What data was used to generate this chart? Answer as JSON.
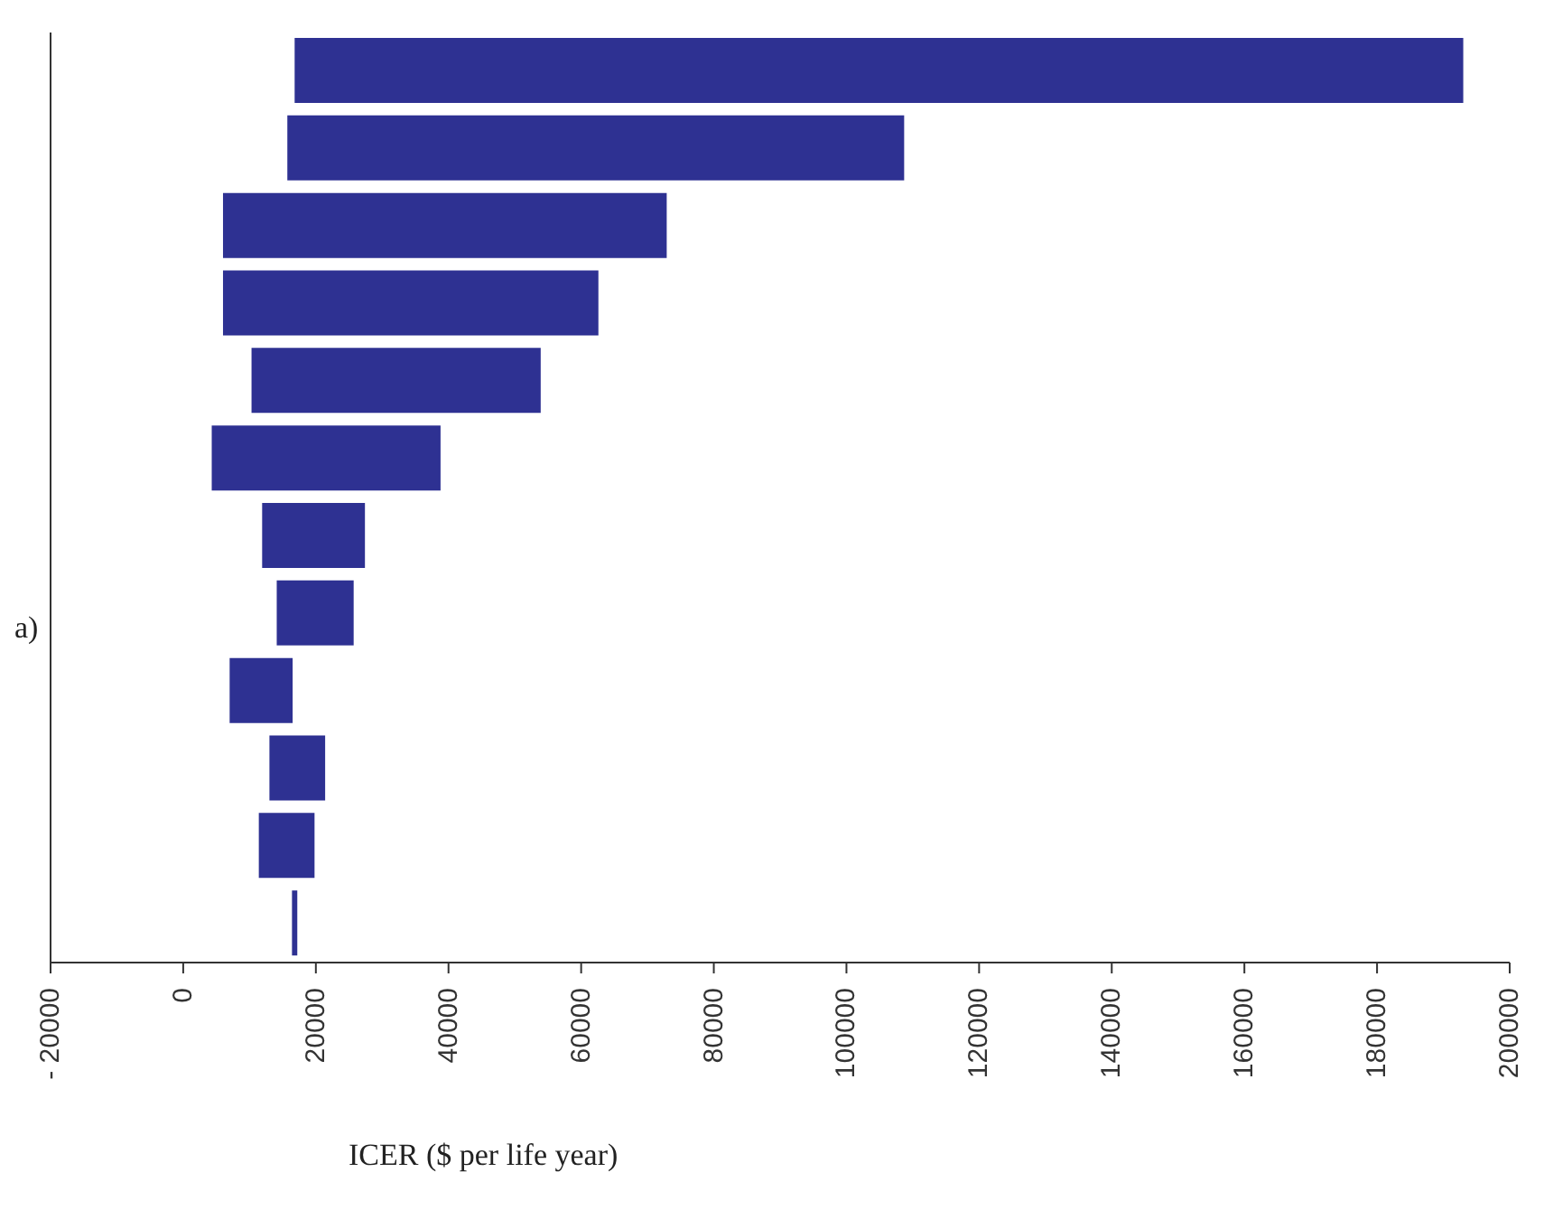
{
  "chart_data": {
    "type": "bar",
    "orientation": "horizontal",
    "xlabel": "ICER ($ per life year)",
    "annotations": [
      "a)"
    ],
    "categories": [
      null,
      null,
      null,
      null,
      null,
      null,
      null,
      null,
      null,
      null,
      null,
      null
    ],
    "base": [
      16800,
      15700,
      6000,
      6000,
      10300,
      4300,
      11900,
      14100,
      7000,
      13000,
      11400,
      16400
    ],
    "values": [
      176200,
      93000,
      66900,
      56600,
      43600,
      34500,
      15500,
      11600,
      9500,
      8400,
      8400,
      800
    ],
    "color": "#2e3192",
    "xlim": [
      -20000,
      200000
    ],
    "xticks": [
      {
        "value": -20000,
        "label": "- 20000"
      },
      0,
      20000,
      40000,
      60000,
      80000,
      100000,
      120000,
      140000,
      160000,
      180000,
      200000
    ],
    "tick_labels": "x"
  }
}
